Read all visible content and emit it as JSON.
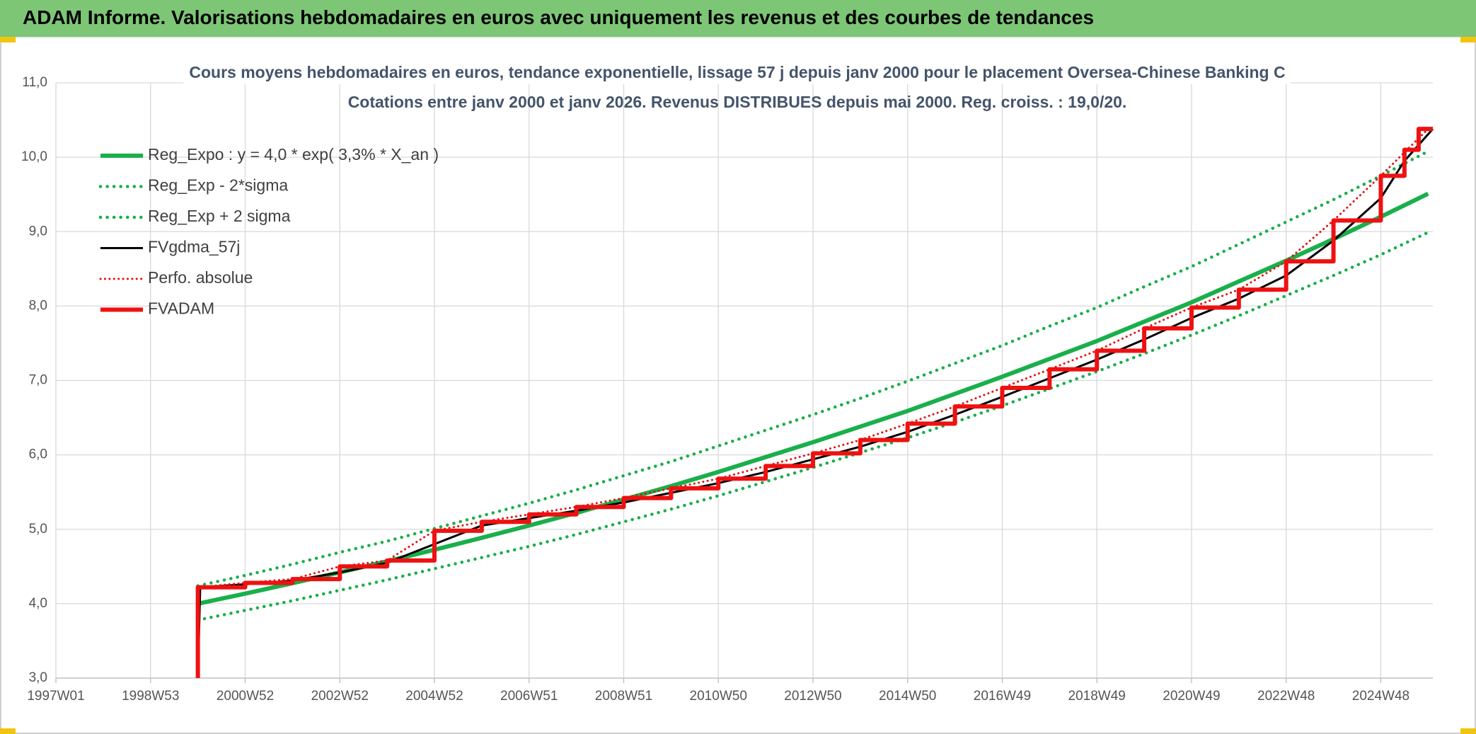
{
  "header": {
    "title": "ADAM Informe. Valorisations hebdomadaires en euros avec uniquement les revenus et des courbes de tendances"
  },
  "chart_data": {
    "type": "line",
    "title": "Cours moyens hebdomadaires en euros, tendance exponentielle, lissage 57 j depuis janv 2000 pour le placement Oversea-Chinese Banking C",
    "subtitle": "Cotations entre janv 2000 et janv 2026. Revenus DISTRIBUES depuis mai 2000. Reg. croiss. : 19,0/20.",
    "xlim": [
      1997,
      2026.1
    ],
    "xticks": [
      {
        "value": 1997,
        "label": "1997W01"
      },
      {
        "value": 1999,
        "label": "1998W53"
      },
      {
        "value": 2001,
        "label": "2000W52"
      },
      {
        "value": 2003,
        "label": "2002W52"
      },
      {
        "value": 2005,
        "label": "2004W52"
      },
      {
        "value": 2007,
        "label": "2006W51"
      },
      {
        "value": 2009,
        "label": "2008W51"
      },
      {
        "value": 2011,
        "label": "2010W50"
      },
      {
        "value": 2013,
        "label": "2012W50"
      },
      {
        "value": 2015,
        "label": "2014W50"
      },
      {
        "value": 2017,
        "label": "2016W49"
      },
      {
        "value": 2019,
        "label": "2018W49"
      },
      {
        "value": 2021,
        "label": "2020W49"
      },
      {
        "value": 2023,
        "label": "2022W48"
      },
      {
        "value": 2025,
        "label": "2024W48"
      }
    ],
    "ylim": [
      3,
      11
    ],
    "yticks": [
      {
        "value": 3,
        "label": "3,0"
      },
      {
        "value": 4,
        "label": "4,0"
      },
      {
        "value": 5,
        "label": "5,0"
      },
      {
        "value": 6,
        "label": "6,0"
      },
      {
        "value": 7,
        "label": "7,0"
      },
      {
        "value": 8,
        "label": "8,0"
      },
      {
        "value": 9,
        "label": "9,0"
      },
      {
        "value": 10,
        "label": "10,0"
      },
      {
        "value": 11,
        "label": "11,0"
      }
    ],
    "grid": true,
    "legend": "upper left",
    "series": [
      {
        "name": "Reg_Expo : y = 4,0 * exp( 3,3% *  X_an )",
        "color": "#1aaf4b",
        "style": "solid",
        "line_width": 6,
        "x": [
          2000,
          2001,
          2002,
          2003,
          2004,
          2005,
          2006,
          2007,
          2008,
          2009,
          2010,
          2011,
          2012,
          2013,
          2014,
          2015,
          2016,
          2017,
          2018,
          2019,
          2020,
          2021,
          2022,
          2023,
          2024,
          2025,
          2026
        ],
        "values": [
          4.0,
          4.135,
          4.275,
          4.42,
          4.57,
          4.725,
          4.885,
          5.05,
          5.22,
          5.4,
          5.58,
          5.77,
          5.97,
          6.17,
          6.38,
          6.59,
          6.82,
          7.05,
          7.29,
          7.53,
          7.79,
          8.05,
          8.33,
          8.61,
          8.9,
          9.2,
          9.51
        ]
      },
      {
        "name": "Reg_Exp - 2*sigma",
        "color": "#1aaf4b",
        "style": "dotted",
        "line_width": 4.5,
        "x": [
          2000,
          2001,
          2002,
          2003,
          2004,
          2005,
          2006,
          2007,
          2008,
          2009,
          2010,
          2011,
          2012,
          2013,
          2014,
          2015,
          2016,
          2017,
          2018,
          2019,
          2020,
          2021,
          2022,
          2023,
          2024,
          2025,
          2026
        ],
        "values": [
          3.78,
          3.91,
          4.04,
          4.18,
          4.32,
          4.47,
          4.62,
          4.77,
          4.93,
          5.1,
          5.27,
          5.45,
          5.64,
          5.83,
          6.03,
          6.23,
          6.44,
          6.66,
          6.89,
          7.12,
          7.36,
          7.61,
          7.87,
          8.14,
          8.41,
          8.69,
          8.99
        ]
      },
      {
        "name": "Reg_Exp + 2 sigma",
        "color": "#1aaf4b",
        "style": "dotted",
        "line_width": 4.5,
        "x": [
          2000,
          2001,
          2002,
          2003,
          2004,
          2005,
          2006,
          2007,
          2008,
          2009,
          2010,
          2011,
          2012,
          2013,
          2014,
          2015,
          2016,
          2017,
          2018,
          2019,
          2020,
          2021,
          2022,
          2023,
          2024,
          2025,
          2026
        ],
        "values": [
          4.24,
          4.38,
          4.53,
          4.69,
          4.84,
          5.01,
          5.18,
          5.35,
          5.53,
          5.72,
          5.91,
          6.12,
          6.33,
          6.54,
          6.76,
          6.99,
          7.23,
          7.47,
          7.73,
          7.98,
          8.26,
          8.53,
          8.83,
          9.13,
          9.43,
          9.75,
          10.08
        ]
      },
      {
        "name": "FVgdma_57j",
        "color": "#000000",
        "style": "solid",
        "line_width": 3,
        "x": [
          2000,
          2000.05,
          2001,
          2002,
          2003,
          2004,
          2005,
          2006,
          2007,
          2008,
          2009,
          2010,
          2011,
          2012,
          2013,
          2014,
          2015,
          2016,
          2017,
          2018,
          2019,
          2020,
          2021,
          2022,
          2023,
          2024,
          2025,
          2025.5,
          2026.1
        ],
        "values": [
          3.0,
          4.22,
          4.26,
          4.31,
          4.42,
          4.55,
          4.8,
          5.05,
          5.15,
          5.25,
          5.36,
          5.49,
          5.62,
          5.77,
          5.94,
          6.11,
          6.31,
          6.54,
          6.78,
          7.03,
          7.28,
          7.55,
          7.84,
          8.1,
          8.41,
          8.88,
          9.45,
          9.95,
          10.38
        ]
      },
      {
        "name": "Perfo. absolue",
        "color": "#e31010",
        "style": "dotted",
        "line_width": 3,
        "x": [
          2000,
          2001,
          2002,
          2003,
          2004,
          2005,
          2006,
          2007,
          2008,
          2009,
          2010,
          2011,
          2012,
          2013,
          2014,
          2015,
          2016,
          2017,
          2018,
          2019,
          2020,
          2021,
          2022,
          2023,
          2024,
          2025,
          2026
        ],
        "values": [
          4.22,
          4.28,
          4.33,
          4.5,
          4.58,
          4.98,
          5.1,
          5.2,
          5.3,
          5.42,
          5.55,
          5.68,
          5.85,
          6.02,
          6.2,
          6.42,
          6.65,
          6.9,
          7.15,
          7.4,
          7.7,
          7.98,
          8.22,
          8.6,
          9.15,
          9.75,
          10.38
        ]
      },
      {
        "name": "FVADAM",
        "color": "#ee1111",
        "style": "solid",
        "line_width": 6,
        "x": [
          2000,
          2000,
          2001,
          2001,
          2002,
          2002,
          2003,
          2003,
          2004,
          2004,
          2005,
          2005,
          2006,
          2006,
          2007,
          2007,
          2008,
          2008,
          2009,
          2009,
          2010,
          2010,
          2011,
          2011,
          2012,
          2012,
          2013,
          2013,
          2014,
          2014,
          2015,
          2015,
          2016,
          2016,
          2017,
          2017,
          2018,
          2018,
          2019,
          2019,
          2020,
          2020,
          2021,
          2021,
          2022,
          2022,
          2023,
          2023,
          2024,
          2024,
          2025,
          2025,
          2025.5,
          2025.5,
          2025.8,
          2025.8,
          2026.1
        ],
        "values": [
          3.0,
          4.22,
          4.22,
          4.28,
          4.28,
          4.33,
          4.33,
          4.5,
          4.5,
          4.58,
          4.58,
          4.98,
          4.98,
          5.1,
          5.1,
          5.2,
          5.2,
          5.3,
          5.3,
          5.42,
          5.42,
          5.55,
          5.55,
          5.68,
          5.68,
          5.85,
          5.85,
          6.02,
          6.02,
          6.2,
          6.2,
          6.42,
          6.42,
          6.65,
          6.65,
          6.9,
          6.9,
          7.15,
          7.15,
          7.4,
          7.4,
          7.7,
          7.7,
          7.98,
          7.98,
          8.22,
          8.22,
          8.6,
          8.6,
          9.15,
          9.15,
          9.75,
          9.75,
          10.1,
          10.1,
          10.38,
          10.38
        ]
      }
    ]
  }
}
